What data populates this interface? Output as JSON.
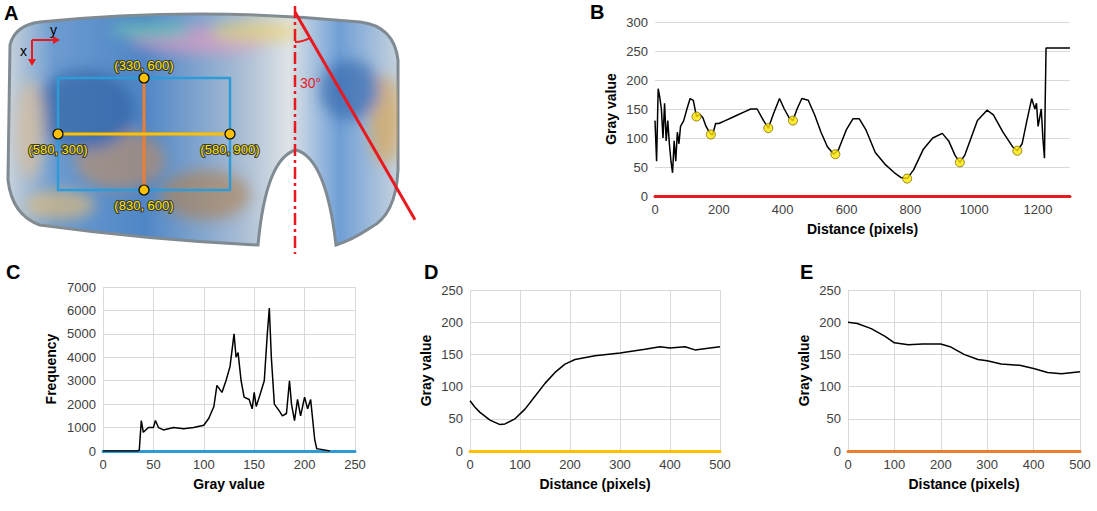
{
  "photo_panel": {
    "panel": "A",
    "axis_labels": {
      "x": "x",
      "y": "y"
    },
    "points": [
      {
        "label": "(330, 600)",
        "x": 330,
        "y": 600
      },
      {
        "label": "(580, 300)",
        "x": 580,
        "y": 300
      },
      {
        "label": "(580, 900)",
        "x": 580,
        "y": 900
      },
      {
        "label": "(830, 600)",
        "x": 830,
        "y": 600
      }
    ],
    "angle": {
      "value": 30,
      "label": "30°"
    }
  },
  "chart_data": [
    {
      "panel": "B",
      "type": "line",
      "color": "#e8191f",
      "xlabel": "Distance (pixels)",
      "ylabel": "Gray value",
      "xlim": [
        0,
        1300
      ],
      "xticks": [
        0,
        200,
        400,
        600,
        800,
        1000,
        1200
      ],
      "ylim": [
        0,
        300
      ],
      "yticks": [
        0,
        50,
        100,
        150,
        200,
        250,
        300
      ],
      "grid": "y",
      "series": [
        {
          "type": "line",
          "color": "#000000",
          "x": [
            0,
            5,
            10,
            15,
            20,
            25,
            30,
            35,
            40,
            45,
            50,
            55,
            60,
            65,
            70,
            75,
            80,
            90,
            100,
            110,
            120,
            130,
            140,
            150,
            160,
            170,
            180,
            190,
            200,
            220,
            240,
            260,
            280,
            300,
            320,
            340,
            355,
            370,
            390,
            405,
            420,
            432,
            445,
            460,
            480,
            500,
            520,
            540,
            560,
            575,
            600,
            620,
            640,
            660,
            690,
            720,
            750,
            770,
            790,
            810,
            840,
            870,
            900,
            920,
            940,
            955,
            970,
            990,
            1010,
            1040,
            1060,
            1090,
            1120,
            1135,
            1150,
            1165,
            1180,
            1190,
            1195,
            1200,
            1210,
            1215,
            1220,
            1222,
            1225,
            1300
          ],
          "values": [
            130,
            60,
            185,
            170,
            150,
            100,
            160,
            95,
            130,
            90,
            60,
            40,
            95,
            60,
            110,
            90,
            120,
            130,
            150,
            168,
            165,
            137,
            141,
            135,
            120,
            110,
            105,
            125,
            125,
            130,
            135,
            140,
            145,
            150,
            150,
            130,
            117,
            140,
            168,
            150,
            135,
            130,
            150,
            168,
            165,
            140,
            110,
            85,
            72,
            80,
            115,
            133,
            133,
            115,
            75,
            55,
            40,
            32,
            30,
            45,
            80,
            100,
            108,
            95,
            70,
            58,
            70,
            100,
            130,
            148,
            140,
            110,
            85,
            78,
            90,
            130,
            168,
            150,
            160,
            120,
            150,
            100,
            65,
            150,
            255,
            255
          ]
        },
        {
          "type": "scatter",
          "color": "#ffe600",
          "marker": "circle",
          "x": [
            130,
            175,
            355,
            432,
            565,
            790,
            955,
            1135
          ],
          "values": [
            137,
            106,
            117,
            130,
            72,
            30,
            58,
            78
          ]
        }
      ]
    },
    {
      "panel": "C",
      "type": "line",
      "color": "#2e9bd6",
      "xlabel": "Gray value",
      "ylabel": "Frequency",
      "xlim": [
        0,
        250
      ],
      "xticks": [
        0,
        50,
        100,
        150,
        200,
        250
      ],
      "ylim": [
        0,
        7000
      ],
      "yticks": [
        0,
        1000,
        2000,
        3000,
        4000,
        5000,
        6000,
        7000
      ],
      "grid": true,
      "series": [
        {
          "type": "line",
          "color": "#000000",
          "x": [
            0,
            35,
            36,
            38,
            40,
            45,
            50,
            52,
            55,
            60,
            70,
            80,
            90,
            100,
            105,
            110,
            113,
            118,
            122,
            126,
            130,
            132,
            134,
            137,
            140,
            145,
            148,
            150,
            152,
            155,
            160,
            163,
            165,
            167,
            170,
            175,
            178,
            182,
            185,
            187,
            190,
            193,
            196,
            200,
            203,
            206,
            210,
            212,
            215,
            225
          ],
          "values": [
            0,
            0,
            50,
            1300,
            800,
            1000,
            1000,
            1300,
            1000,
            900,
            1000,
            950,
            1000,
            1100,
            1400,
            1900,
            2800,
            2500,
            3000,
            3600,
            5000,
            4000,
            4200,
            3000,
            2300,
            2200,
            1800,
            2500,
            1900,
            2300,
            3000,
            5000,
            6100,
            4000,
            2000,
            1700,
            1500,
            1600,
            3000,
            2000,
            1300,
            2200,
            1500,
            2300,
            1800,
            2200,
            500,
            100,
            80,
            0
          ]
        }
      ]
    },
    {
      "panel": "D",
      "type": "line",
      "color": "#ffc000",
      "xlabel": "Distance (pixels)",
      "ylabel": "Gray value",
      "xlim": [
        0,
        500
      ],
      "xticks": [
        0,
        100,
        200,
        300,
        400,
        500
      ],
      "ylim": [
        0,
        250
      ],
      "yticks": [
        0,
        50,
        100,
        150,
        200,
        250
      ],
      "grid": true,
      "series": [
        {
          "type": "line",
          "color": "#000000",
          "x": [
            0,
            10,
            20,
            40,
            60,
            70,
            90,
            110,
            130,
            150,
            170,
            190,
            210,
            250,
            300,
            350,
            380,
            400,
            430,
            450,
            480,
            500
          ],
          "values": [
            78,
            68,
            60,
            48,
            41,
            42,
            50,
            65,
            85,
            105,
            122,
            135,
            142,
            148,
            152,
            158,
            162,
            160,
            162,
            157,
            160,
            162
          ]
        }
      ]
    },
    {
      "panel": "E",
      "type": "line",
      "color": "#ed7d31",
      "xlabel": "Distance (pixels)",
      "ylabel": "Gray value",
      "xlim": [
        0,
        500
      ],
      "xticks": [
        0,
        100,
        200,
        300,
        400,
        500
      ],
      "ylim": [
        0,
        250
      ],
      "yticks": [
        0,
        50,
        100,
        150,
        200,
        250
      ],
      "grid": true,
      "series": [
        {
          "type": "line",
          "color": "#000000",
          "x": [
            0,
            20,
            50,
            80,
            100,
            130,
            160,
            200,
            220,
            250,
            280,
            300,
            330,
            370,
            400,
            430,
            460,
            500
          ],
          "values": [
            200,
            198,
            190,
            178,
            168,
            165,
            166,
            166,
            162,
            150,
            142,
            140,
            135,
            133,
            128,
            122,
            120,
            123
          ]
        }
      ]
    }
  ]
}
